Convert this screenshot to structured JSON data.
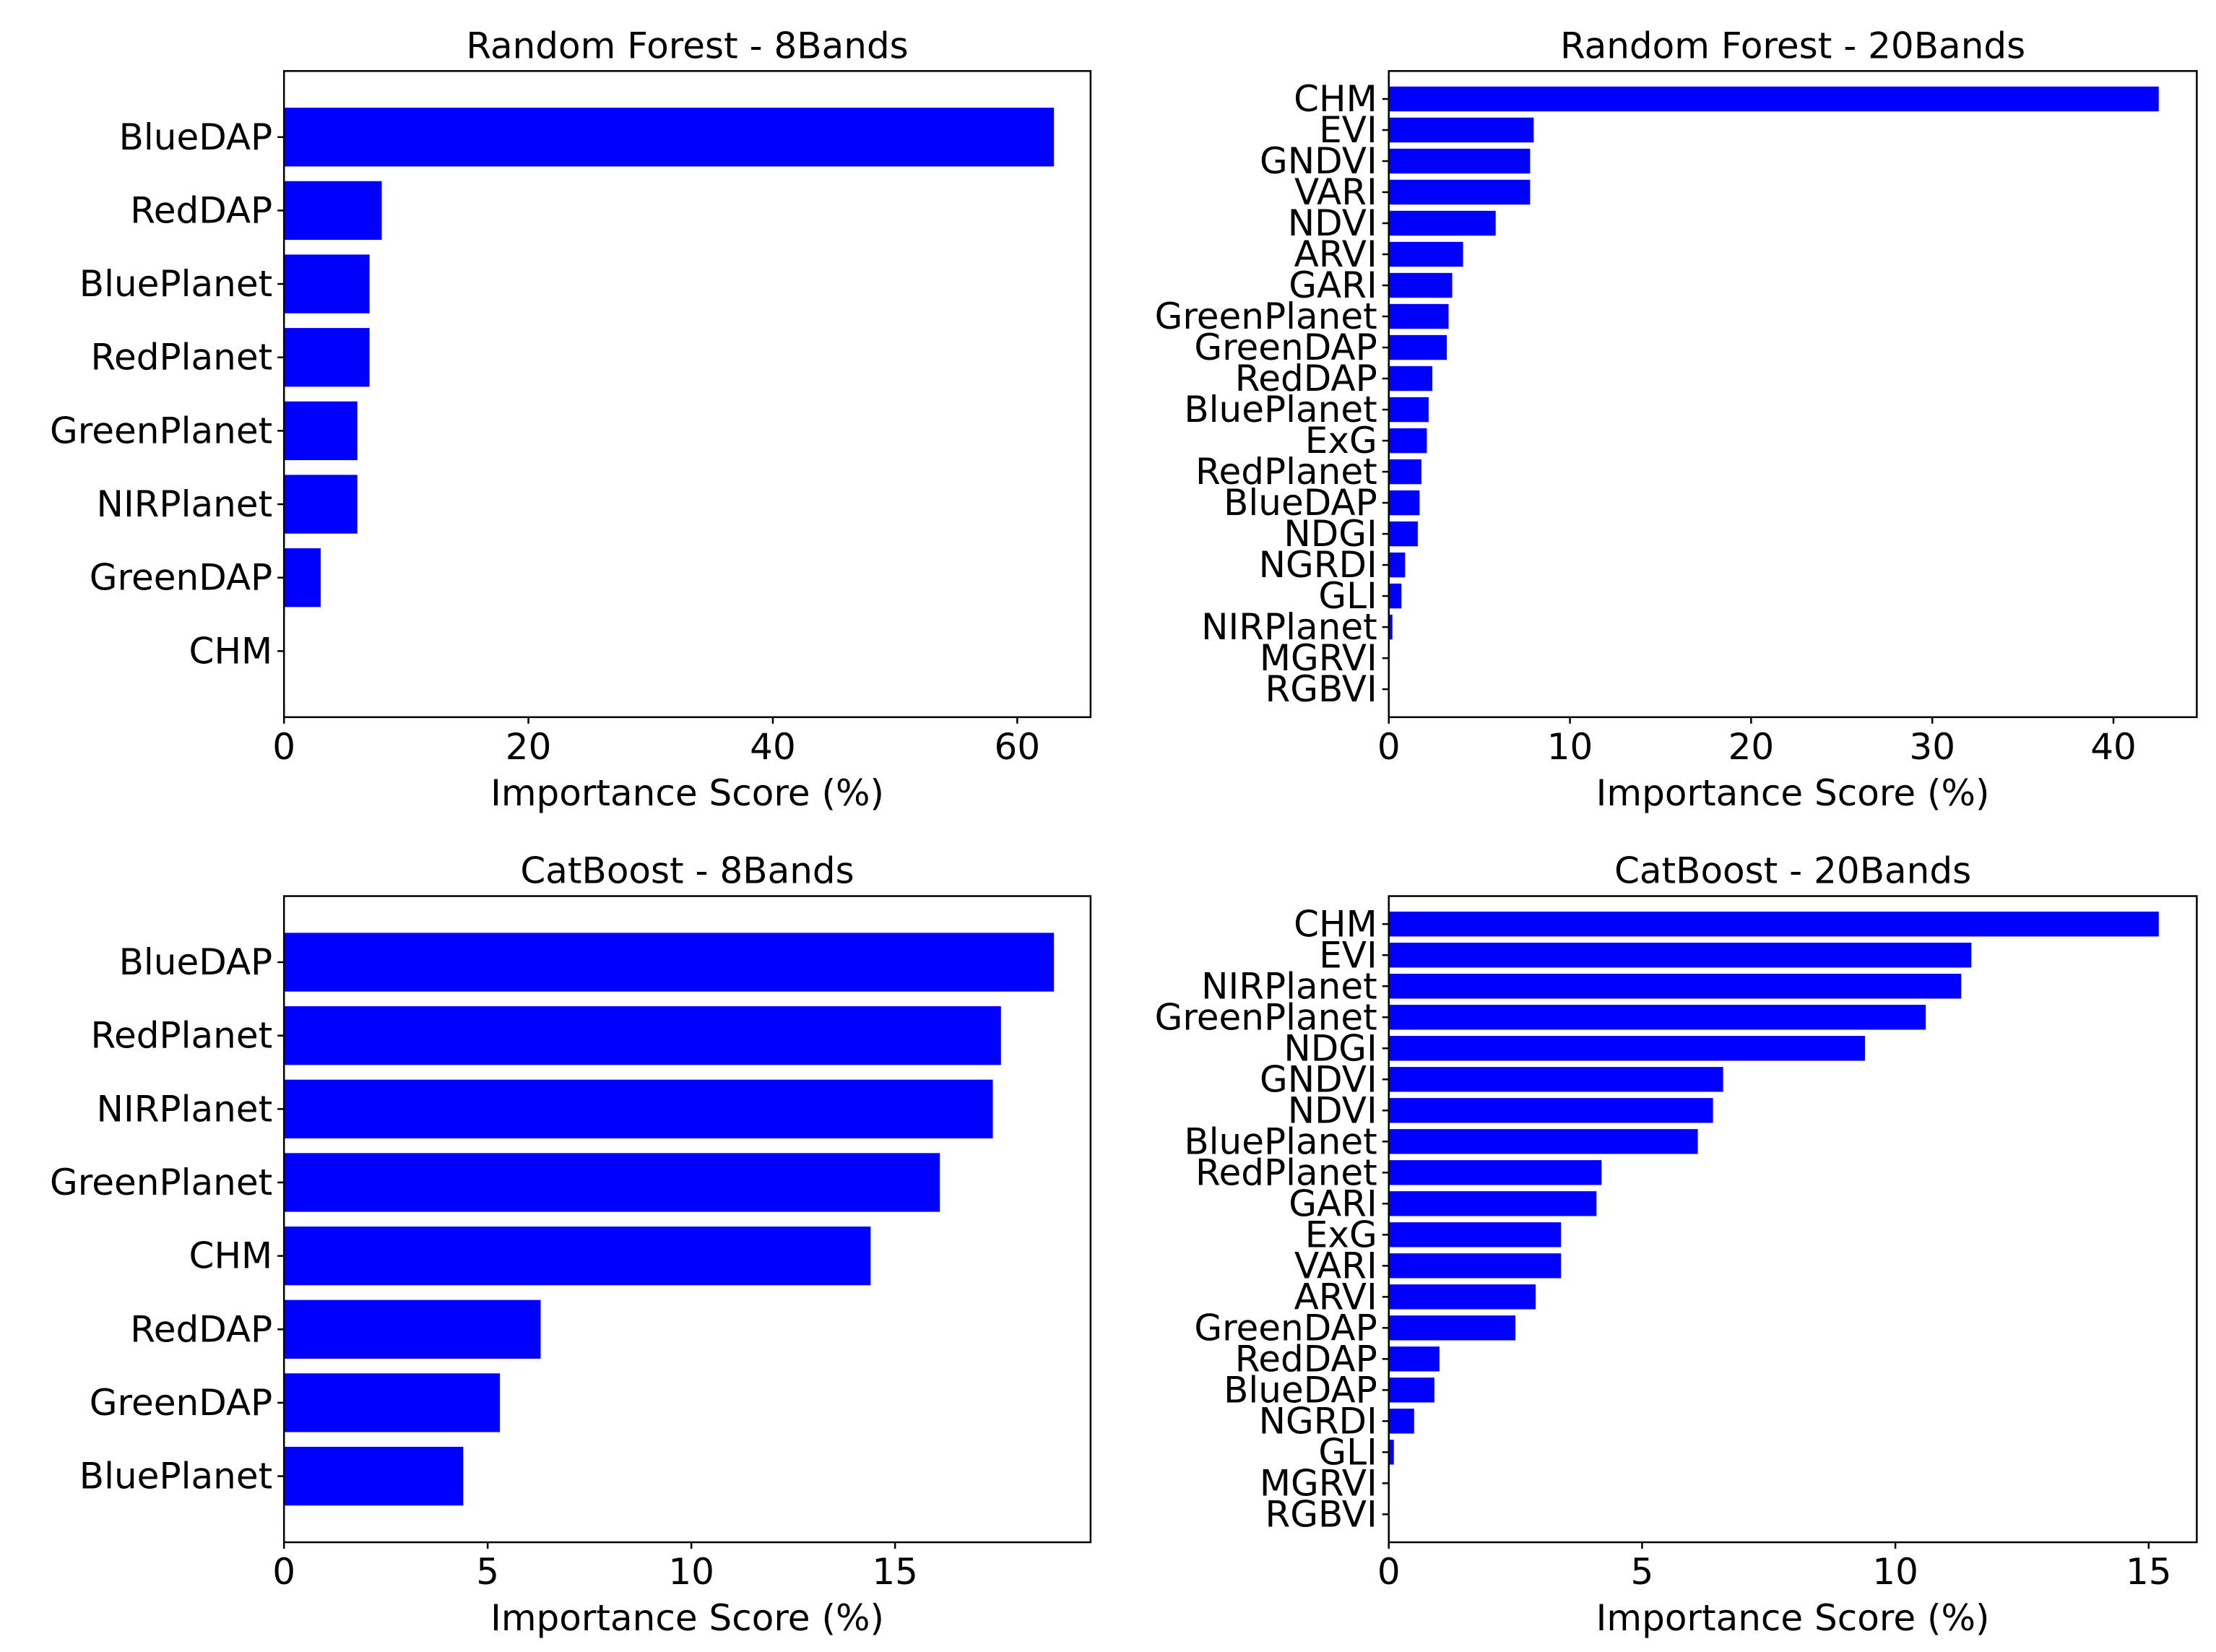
{
  "chart_data": [
    {
      "type": "bar",
      "orientation": "horizontal",
      "title": "Random Forest - 8Bands",
      "xlabel": "Importance Score (%)",
      "ylabel": "",
      "xlim": [
        0,
        66
      ],
      "xticks": [
        0,
        20,
        40,
        60
      ],
      "categories": [
        "BlueDAP",
        "RedDAP",
        "BluePlanet",
        "RedPlanet",
        "GreenPlanet",
        "NIRPlanet",
        "GreenDAP",
        "CHM"
      ],
      "values": [
        63,
        8,
        7,
        7,
        6,
        6,
        3,
        0
      ],
      "color": "#0000ff",
      "grid": false
    },
    {
      "type": "bar",
      "orientation": "horizontal",
      "title": "Random Forest - 20Bands",
      "xlabel": "Importance Score (%)",
      "ylabel": "",
      "xlim": [
        0,
        44.6
      ],
      "xticks": [
        0,
        10,
        20,
        30,
        40
      ],
      "categories": [
        "CHM",
        "EVI",
        "GNDVI",
        "VARI",
        "NDVI",
        "ARVI",
        "GARI",
        "GreenPlanet",
        "GreenDAP",
        "RedDAP",
        "BluePlanet",
        "ExG",
        "RedPlanet",
        "BlueDAP",
        "NDGI",
        "NGRDI",
        "GLI",
        "NIRPlanet",
        "MGRVI",
        "RGBVI"
      ],
      "values": [
        42.5,
        8.0,
        7.8,
        7.8,
        5.9,
        4.1,
        3.5,
        3.3,
        3.2,
        2.4,
        2.2,
        2.1,
        1.8,
        1.7,
        1.6,
        0.9,
        0.7,
        0.2,
        0.0,
        0.0
      ],
      "color": "#0000ff",
      "grid": false
    },
    {
      "type": "bar",
      "orientation": "horizontal",
      "title": "CatBoost - 8Bands",
      "xlabel": "Importance Score (%)",
      "ylabel": "",
      "xlim": [
        0,
        19.8
      ],
      "xticks": [
        0,
        5,
        10,
        15
      ],
      "categories": [
        "BlueDAP",
        "RedPlanet",
        "NIRPlanet",
        "GreenPlanet",
        "CHM",
        "RedDAP",
        "GreenDAP",
        "BluePlanet"
      ],
      "values": [
        18.9,
        17.6,
        17.4,
        16.1,
        14.4,
        6.3,
        5.3,
        4.4
      ],
      "color": "#0000ff",
      "grid": false
    },
    {
      "type": "bar",
      "orientation": "horizontal",
      "title": "CatBoost - 20Bands",
      "xlabel": "Importance Score (%)",
      "ylabel": "",
      "xlim": [
        0,
        15.95
      ],
      "xticks": [
        0,
        5,
        10,
        15
      ],
      "categories": [
        "CHM",
        "EVI",
        "NIRPlanet",
        "GreenPlanet",
        "NDGI",
        "GNDVI",
        "NDVI",
        "BluePlanet",
        "RedPlanet",
        "GARI",
        "ExG",
        "VARI",
        "ARVI",
        "GreenDAP",
        "RedDAP",
        "BlueDAP",
        "NGRDI",
        "GLI",
        "MGRVI",
        "RGBVI"
      ],
      "values": [
        15.2,
        11.5,
        11.3,
        10.6,
        9.4,
        6.6,
        6.4,
        6.1,
        4.2,
        4.1,
        3.4,
        3.4,
        2.9,
        2.5,
        1.0,
        0.9,
        0.5,
        0.1,
        0.0,
        0.0
      ],
      "color": "#0000ff",
      "grid": false
    }
  ]
}
